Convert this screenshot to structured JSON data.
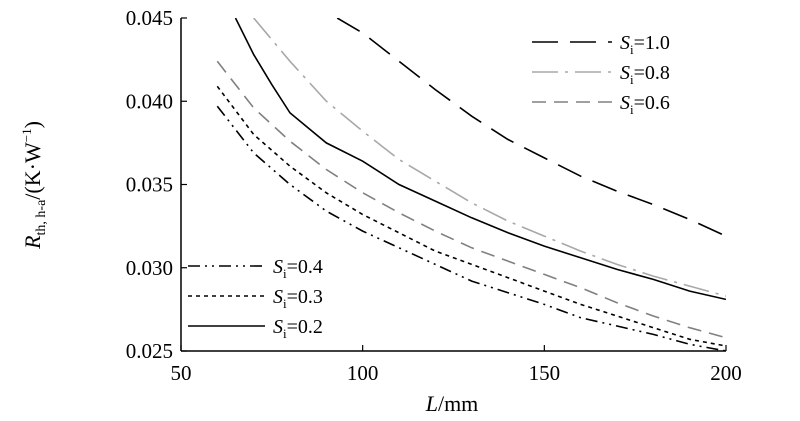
{
  "chart_data": {
    "type": "line",
    "xlabel": "L/mm",
    "xlabel_italic": "L",
    "xlabel_unit": "/mm",
    "ylabel": "R_th, h-a/(K·W⁻¹)",
    "ylabel_italic": "R",
    "ylabel_sub": "th, h-a",
    "ylabel_unit_open": "/(K·W",
    "ylabel_sup": "−1",
    "ylabel_unit_close": ")",
    "xlim": [
      50,
      200
    ],
    "ylim": [
      0.025,
      0.045
    ],
    "xticks": [
      50,
      100,
      150,
      200
    ],
    "xtick_labels": [
      "50",
      "100",
      "150",
      "200"
    ],
    "yticks": [
      0.025,
      0.03,
      0.035,
      0.04,
      0.045
    ],
    "ytick_labels": [
      "0.025",
      "0.030",
      "0.035",
      "0.040",
      "0.045"
    ],
    "grid": false,
    "legends": [
      {
        "placement": "top-right",
        "series_indices": [
          0,
          1,
          2
        ]
      },
      {
        "placement": "bottom-left",
        "series_indices": [
          3,
          4,
          5
        ]
      }
    ],
    "series": [
      {
        "name": "Si=1.0",
        "label_var": "S",
        "label_sub": "i",
        "label_rest": "=1.0",
        "color": "#000000",
        "dash": "26 12",
        "x": [
          93,
          100,
          110,
          120,
          130,
          140,
          150,
          160,
          170,
          180,
          190,
          200
        ],
        "y": [
          0.045,
          0.0441,
          0.0424,
          0.0407,
          0.0391,
          0.0377,
          0.0366,
          0.0355,
          0.0346,
          0.0338,
          0.0329,
          0.0319
        ]
      },
      {
        "name": "Si=0.8",
        "label_var": "S",
        "label_sub": "i",
        "label_rest": "=0.8",
        "color": "#a8a8a8",
        "dash": "26 7 3 7",
        "x": [
          70,
          75,
          80,
          90,
          100,
          110,
          120,
          130,
          140,
          150,
          160,
          170,
          180,
          190,
          200
        ],
        "y": [
          0.045,
          0.0437,
          0.0424,
          0.04,
          0.0382,
          0.0365,
          0.0352,
          0.0339,
          0.0328,
          0.0319,
          0.031,
          0.0302,
          0.0295,
          0.0289,
          0.0283
        ]
      },
      {
        "name": "Si=0.6",
        "label_var": "S",
        "label_sub": "i",
        "label_rest": "=0.6",
        "color": "#808080",
        "dash": "14 8",
        "x": [
          60,
          70,
          80,
          90,
          100,
          110,
          120,
          130,
          140,
          150,
          160,
          170,
          180,
          190,
          200
        ],
        "y": [
          0.0424,
          0.0396,
          0.0376,
          0.0359,
          0.0345,
          0.0333,
          0.0322,
          0.0312,
          0.0304,
          0.0296,
          0.0288,
          0.0279,
          0.0271,
          0.0264,
          0.0258
        ]
      },
      {
        "name": "Si=0.4",
        "label_var": "S",
        "label_sub": "i",
        "label_rest": "=0.4",
        "color": "#000000",
        "dash": "12 5 2 5 2 5",
        "x": [
          60,
          70,
          80,
          90,
          100,
          110,
          120,
          130,
          140,
          150,
          160,
          170,
          180,
          190,
          200
        ],
        "y": [
          0.0397,
          0.0369,
          0.035,
          0.0334,
          0.0322,
          0.0312,
          0.0302,
          0.0292,
          0.0285,
          0.0278,
          0.027,
          0.0265,
          0.026,
          0.0254,
          0.025
        ]
      },
      {
        "name": "Si=0.3",
        "label_var": "S",
        "label_sub": "i",
        "label_rest": "=0.3",
        "color": "#000000",
        "dash": "4 4",
        "x": [
          60,
          70,
          80,
          90,
          100,
          110,
          120,
          130,
          140,
          150,
          160,
          170,
          180,
          190,
          200
        ],
        "y": [
          0.0409,
          0.038,
          0.0361,
          0.0345,
          0.0332,
          0.0321,
          0.031,
          0.0302,
          0.0294,
          0.0286,
          0.0278,
          0.0271,
          0.0264,
          0.0257,
          0.0253
        ]
      },
      {
        "name": "Si=0.2",
        "label_var": "S",
        "label_sub": "i",
        "label_rest": "=0.2",
        "color": "#000000",
        "dash": "",
        "x": [
          65,
          70,
          75,
          80,
          90,
          100,
          110,
          120,
          130,
          140,
          150,
          160,
          170,
          180,
          190,
          200
        ],
        "y": [
          0.045,
          0.0428,
          0.041,
          0.0393,
          0.0375,
          0.0364,
          0.035,
          0.034,
          0.033,
          0.0321,
          0.0313,
          0.0306,
          0.0299,
          0.0293,
          0.0286,
          0.0281
        ]
      }
    ]
  }
}
